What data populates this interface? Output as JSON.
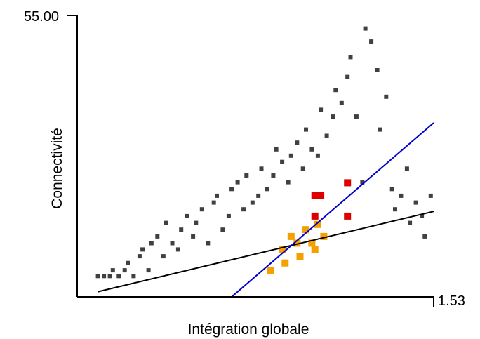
{
  "chart_data": {
    "type": "scatter",
    "title": "",
    "xlabel": "Intégration globale",
    "ylabel": "Connectivité",
    "xlim": [
      0.33,
      1.53
    ],
    "ylim": [
      1,
      55
    ],
    "x_tick_labels": [
      "1.53"
    ],
    "y_tick_labels": [
      "55.00"
    ],
    "grid": false,
    "legend": "none",
    "series": [
      {
        "color": "#404040",
        "marker": "square",
        "points": [
          [
            0.4,
            5.0
          ],
          [
            0.42,
            5.0
          ],
          [
            0.44,
            5.0
          ],
          [
            0.45,
            6.1
          ],
          [
            0.47,
            5.0
          ],
          [
            0.49,
            6.1
          ],
          [
            0.5,
            7.5
          ],
          [
            0.52,
            5.0
          ],
          [
            0.54,
            8.8
          ],
          [
            0.55,
            10.1
          ],
          [
            0.57,
            6.1
          ],
          [
            0.58,
            11.3
          ],
          [
            0.6,
            12.6
          ],
          [
            0.62,
            8.8
          ],
          [
            0.63,
            15.2
          ],
          [
            0.65,
            11.3
          ],
          [
            0.67,
            10.1
          ],
          [
            0.68,
            13.9
          ],
          [
            0.7,
            16.5
          ],
          [
            0.72,
            12.6
          ],
          [
            0.73,
            15.2
          ],
          [
            0.75,
            17.8
          ],
          [
            0.77,
            11.3
          ],
          [
            0.79,
            19.1
          ],
          [
            0.8,
            20.4
          ],
          [
            0.82,
            13.9
          ],
          [
            0.84,
            16.5
          ],
          [
            0.85,
            21.7
          ],
          [
            0.87,
            23.0
          ],
          [
            0.89,
            17.8
          ],
          [
            0.9,
            24.3
          ],
          [
            0.92,
            19.1
          ],
          [
            0.94,
            20.4
          ],
          [
            0.95,
            25.6
          ],
          [
            0.97,
            21.7
          ],
          [
            0.99,
            24.3
          ],
          [
            1.0,
            29.3
          ],
          [
            1.02,
            26.9
          ],
          [
            1.04,
            23.0
          ],
          [
            1.05,
            28.1
          ],
          [
            1.07,
            30.6
          ],
          [
            1.09,
            25.6
          ],
          [
            1.1,
            33.1
          ],
          [
            1.12,
            29.3
          ],
          [
            1.14,
            28.1
          ],
          [
            1.15,
            36.9
          ],
          [
            1.17,
            31.9
          ],
          [
            1.19,
            35.6
          ],
          [
            1.2,
            40.7
          ],
          [
            1.22,
            38.2
          ],
          [
            1.24,
            43.2
          ],
          [
            1.25,
            47.0
          ],
          [
            1.27,
            35.6
          ],
          [
            1.29,
            23.0
          ],
          [
            1.3,
            52.5
          ],
          [
            1.32,
            50.0
          ],
          [
            1.34,
            44.5
          ],
          [
            1.35,
            33.1
          ],
          [
            1.37,
            39.4
          ],
          [
            1.39,
            21.7
          ],
          [
            1.4,
            17.8
          ],
          [
            1.42,
            20.4
          ],
          [
            1.44,
            25.6
          ],
          [
            1.45,
            15.2
          ],
          [
            1.47,
            19.1
          ],
          [
            1.49,
            16.5
          ],
          [
            1.5,
            12.6
          ],
          [
            1.52,
            20.4
          ]
        ]
      },
      {
        "color": "#f4a000",
        "marker": "square",
        "points": [
          [
            1.02,
            10.1
          ],
          [
            1.05,
            12.6
          ],
          [
            1.07,
            11.3
          ],
          [
            1.1,
            13.9
          ],
          [
            1.12,
            11.3
          ],
          [
            1.13,
            10.1
          ],
          [
            1.16,
            12.6
          ],
          [
            1.08,
            8.8
          ],
          [
            1.03,
            7.5
          ],
          [
            0.98,
            6.1
          ],
          [
            1.14,
            14.9
          ]
        ]
      },
      {
        "color": "#dd0000",
        "marker": "square",
        "points": [
          [
            1.13,
            20.4
          ],
          [
            1.15,
            20.4
          ],
          [
            1.24,
            22.9
          ],
          [
            1.24,
            16.5
          ],
          [
            1.13,
            16.5
          ]
        ]
      }
    ],
    "lines": [
      {
        "color": "#000000",
        "x": [
          0.4,
          1.53
        ],
        "y": [
          2.0,
          17.4
        ]
      },
      {
        "color": "#0000cc",
        "x": [
          0.85,
          1.53
        ],
        "y": [
          1.0,
          34.4
        ]
      }
    ]
  }
}
